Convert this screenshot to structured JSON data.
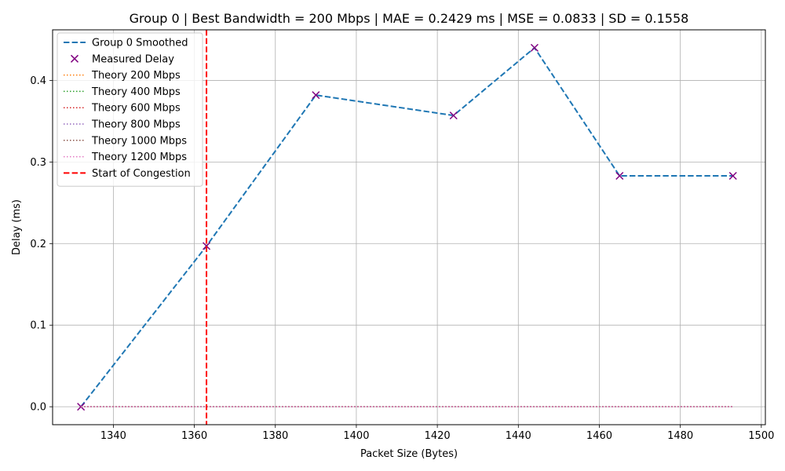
{
  "chart_data": {
    "type": "line",
    "title": "Group 0 | Best Bandwidth = 200 Mbps | MAE = 0.2429 ms | MSE = 0.0833 | SD = 0.1558",
    "xlabel": "Packet Size (Bytes)",
    "ylabel": "Delay (ms)",
    "xlim": [
      1325,
      1501
    ],
    "ylim": [
      -0.022,
      0.462
    ],
    "xticks": [
      1340,
      1360,
      1380,
      1400,
      1420,
      1440,
      1460,
      1480,
      1500
    ],
    "yticks": [
      0.0,
      0.1,
      0.2,
      0.3,
      0.4
    ],
    "xtick_labels": [
      "1340",
      "1360",
      "1380",
      "1400",
      "1420",
      "1440",
      "1460",
      "1480",
      "1500"
    ],
    "ytick_labels": [
      "0.0",
      "0.1",
      "0.2",
      "0.3",
      "0.4"
    ],
    "grid": true,
    "legend_position": "top-left",
    "series": [
      {
        "name": "Group 0 Smoothed",
        "kind": "line",
        "style": "dashed",
        "color": "#1f77b4",
        "x": [
          1332,
          1363,
          1390,
          1424,
          1444,
          1465,
          1493
        ],
        "y": [
          0.0,
          0.197,
          0.382,
          0.357,
          0.44,
          0.283,
          0.283
        ]
      },
      {
        "name": "Measured Delay",
        "kind": "scatter",
        "marker": "x",
        "color": "#800080",
        "x": [
          1332,
          1363,
          1390,
          1424,
          1444,
          1465,
          1493
        ],
        "y": [
          0.0,
          0.197,
          0.382,
          0.357,
          0.44,
          0.283,
          0.283
        ]
      },
      {
        "name": "Theory 200 Mbps",
        "kind": "line",
        "style": "dotted",
        "color": "#ff7f0e",
        "x": [
          1332,
          1493
        ],
        "y": [
          0.0,
          0.0
        ]
      },
      {
        "name": "Theory 400 Mbps",
        "kind": "line",
        "style": "dotted",
        "color": "#2ca02c",
        "x": [
          1332,
          1493
        ],
        "y": [
          0.0,
          0.0
        ]
      },
      {
        "name": "Theory 600 Mbps",
        "kind": "line",
        "style": "dotted",
        "color": "#d62728",
        "x": [
          1332,
          1493
        ],
        "y": [
          0.0,
          0.0
        ]
      },
      {
        "name": "Theory 800 Mbps",
        "kind": "line",
        "style": "dotted",
        "color": "#9467bd",
        "x": [
          1332,
          1493
        ],
        "y": [
          0.0,
          0.0
        ]
      },
      {
        "name": "Theory 1000 Mbps",
        "kind": "line",
        "style": "dotted",
        "color": "#8c564b",
        "x": [
          1332,
          1493
        ],
        "y": [
          0.0,
          0.0
        ]
      },
      {
        "name": "Theory 1200 Mbps",
        "kind": "line",
        "style": "dotted",
        "color": "#e377c2",
        "x": [
          1332,
          1493
        ],
        "y": [
          0.0,
          0.0
        ]
      },
      {
        "name": "Start of Congestion",
        "kind": "vline",
        "style": "dashed",
        "color": "#ff0000",
        "x": 1363
      }
    ]
  }
}
